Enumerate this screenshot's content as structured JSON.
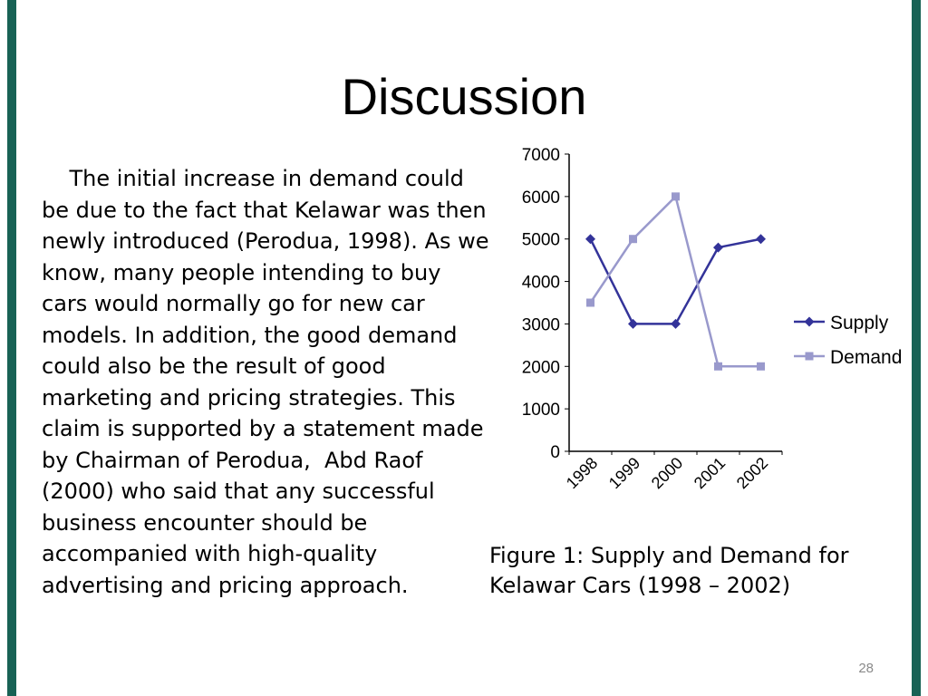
{
  "slide": {
    "title": "Discussion",
    "accent_color": "#186255",
    "body_text": "    The initial increase in demand could be due to the fact that Kelawar was then newly introduced (Perodua, 1998). As we know, many people intending to buy cars would normally go for new car models. In addition, the good demand could also be the result of good marketing and pricing strategies. This claim is supported by a statement made by Chairman of Perodua,  Abd Raof (2000) who said that any successful business encounter should be accompanied with high-quality advertising and pricing approach.",
    "figure_caption": "Figure 1: Supply and Demand for Kelawar Cars (1998 – 2002)",
    "page_number": "28"
  },
  "chart_data": {
    "type": "line",
    "title": "",
    "categories": [
      "1998",
      "1999",
      "2000",
      "2001",
      "2002"
    ],
    "series": [
      {
        "name": "Supply",
        "marker": "diamond",
        "color": "#333399",
        "values": [
          5000,
          3000,
          3000,
          4800,
          5000
        ]
      },
      {
        "name": "Demand",
        "marker": "square",
        "color": "#9999CC",
        "values": [
          3500,
          5000,
          6000,
          2000,
          2000
        ]
      }
    ],
    "xlabel": "",
    "ylabel": "",
    "ylim": [
      0,
      7000
    ],
    "yticks": [
      0,
      1000,
      2000,
      3000,
      4000,
      5000,
      6000,
      7000
    ],
    "grid": false,
    "legend_position": "right"
  }
}
